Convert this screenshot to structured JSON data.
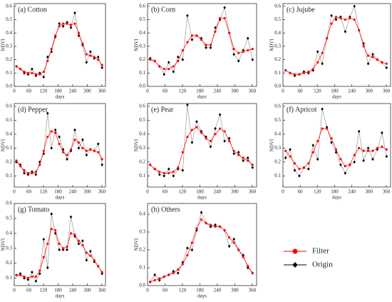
{
  "chart_data": [
    {
      "type": "line",
      "title": "(a) Cotton",
      "x_label": "days",
      "y_label": "NDVI",
      "x": [
        9,
        25,
        41,
        57,
        73,
        89,
        105,
        121,
        137,
        153,
        169,
        185,
        201,
        217,
        233,
        249,
        265,
        281,
        297,
        313,
        329,
        345,
        361
      ],
      "xlim": [
        0,
        375
      ],
      "xticks": [
        0,
        60,
        120,
        180,
        240,
        300,
        360
      ],
      "ylim": [
        0,
        0.62
      ],
      "yticks": [
        {
          "value": 0,
          "label": "0.0"
        },
        0.1,
        0.2,
        0.3,
        0.4,
        0.5,
        0.6
      ],
      "series": [
        {
          "name": "Origin",
          "color": "#000000",
          "values": [
            0.15,
            0.13,
            0.1,
            0.09,
            0.13,
            0.08,
            0.1,
            0.07,
            0.22,
            0.26,
            0.37,
            0.47,
            0.45,
            0.48,
            0.44,
            0.55,
            0.38,
            0.31,
            0.18,
            0.26,
            0.21,
            0.22,
            0.14
          ]
        },
        {
          "name": "Filter",
          "color": "#ff0000",
          "values": [
            0.15,
            0.13,
            0.11,
            0.1,
            0.1,
            0.09,
            0.09,
            0.11,
            0.19,
            0.28,
            0.38,
            0.45,
            0.47,
            0.47,
            0.46,
            0.47,
            0.4,
            0.32,
            0.24,
            0.23,
            0.22,
            0.2,
            0.16
          ]
        }
      ]
    },
    {
      "type": "line",
      "title": "(b) Corn",
      "x_label": "days",
      "y_label": "NDVI",
      "x": [
        9,
        25,
        41,
        57,
        73,
        89,
        105,
        121,
        137,
        153,
        169,
        185,
        201,
        217,
        233,
        249,
        265,
        281,
        297,
        313,
        329,
        345,
        361
      ],
      "xlim": [
        0,
        375
      ],
      "xticks": [
        0,
        60,
        120,
        180,
        240,
        300,
        360
      ],
      "ylim": [
        0,
        0.62
      ],
      "yticks": [
        {
          "value": 0,
          "label": "0.0"
        },
        0.1,
        0.2,
        0.3,
        0.4,
        0.5,
        0.6
      ],
      "series": [
        {
          "name": "Origin",
          "color": "#000000",
          "values": [
            0.21,
            0.19,
            0.15,
            0.09,
            0.18,
            0.11,
            0.22,
            0.2,
            0.53,
            0.35,
            0.38,
            0.36,
            0.29,
            0.29,
            0.44,
            0.5,
            0.59,
            0.4,
            0.24,
            0.19,
            0.27,
            0.36,
            0.2
          ]
        },
        {
          "name": "Filter",
          "color": "#ff0000",
          "values": [
            0.2,
            0.19,
            0.15,
            0.13,
            0.13,
            0.15,
            0.19,
            0.27,
            0.33,
            0.38,
            0.38,
            0.35,
            0.31,
            0.31,
            0.41,
            0.51,
            0.51,
            0.4,
            0.28,
            0.25,
            0.26,
            0.27,
            0.28
          ]
        }
      ]
    },
    {
      "type": "line",
      "title": "(c) Jujube",
      "x_label": "days",
      "y_label": "NDVI",
      "x": [
        9,
        25,
        41,
        57,
        73,
        89,
        105,
        121,
        137,
        153,
        169,
        185,
        201,
        217,
        233,
        249,
        265,
        281,
        297,
        313,
        329,
        345,
        361
      ],
      "xlim": [
        0,
        375
      ],
      "xticks": [
        0,
        60,
        120,
        180,
        240,
        300,
        360
      ],
      "ylim": [
        0,
        0.62
      ],
      "yticks": [
        {
          "value": 0,
          "label": "0.0"
        },
        0.1,
        0.2,
        0.3,
        0.4,
        0.5,
        0.6
      ],
      "series": [
        {
          "name": "Origin",
          "color": "#000000",
          "values": [
            0.12,
            0.1,
            0.08,
            0.09,
            0.11,
            0.1,
            0.12,
            0.26,
            0.17,
            0.36,
            0.53,
            0.5,
            0.52,
            0.41,
            0.52,
            0.6,
            0.42,
            0.32,
            0.17,
            0.24,
            0.2,
            0.18,
            0.14
          ]
        },
        {
          "name": "Filter",
          "color": "#ff0000",
          "values": [
            0.12,
            0.1,
            0.09,
            0.09,
            0.1,
            0.11,
            0.13,
            0.18,
            0.25,
            0.36,
            0.47,
            0.52,
            0.51,
            0.5,
            0.51,
            0.5,
            0.42,
            0.3,
            0.23,
            0.22,
            0.2,
            0.18,
            0.17
          ]
        }
      ]
    },
    {
      "type": "line",
      "title": "(d) Pepper",
      "x_label": "days",
      "y_label": "NDVI",
      "x": [
        9,
        25,
        41,
        57,
        73,
        89,
        105,
        121,
        137,
        153,
        169,
        185,
        201,
        217,
        233,
        249,
        265,
        281,
        297,
        313,
        329,
        345,
        361
      ],
      "xlim": [
        0,
        375
      ],
      "xticks": [
        0,
        60,
        120,
        180,
        240,
        300,
        360
      ],
      "ylim": [
        0.02,
        0.62
      ],
      "yticks": [
        0.1,
        0.2,
        0.3,
        0.4,
        0.5,
        0.6
      ],
      "series": [
        {
          "name": "Origin",
          "color": "#000000",
          "values": [
            0.2,
            0.18,
            0.12,
            0.11,
            0.13,
            0.11,
            0.2,
            0.26,
            0.55,
            0.3,
            0.43,
            0.38,
            0.29,
            0.22,
            0.28,
            0.43,
            0.3,
            0.36,
            0.25,
            0.29,
            0.28,
            0.33,
            0.18
          ]
        },
        {
          "name": "Filter",
          "color": "#ff0000",
          "values": [
            0.21,
            0.17,
            0.14,
            0.12,
            0.12,
            0.13,
            0.18,
            0.28,
            0.38,
            0.42,
            0.41,
            0.33,
            0.27,
            0.25,
            0.29,
            0.36,
            0.34,
            0.3,
            0.28,
            0.29,
            0.28,
            0.27,
            0.22
          ]
        }
      ]
    },
    {
      "type": "line",
      "title": "(e) Pear",
      "x_label": "days",
      "y_label": "NDVI",
      "x": [
        9,
        25,
        41,
        57,
        73,
        89,
        105,
        121,
        137,
        153,
        169,
        185,
        201,
        217,
        233,
        249,
        265,
        281,
        297,
        313,
        329,
        345,
        361
      ],
      "xlim": [
        0,
        375
      ],
      "xticks": [
        0,
        60,
        120,
        180,
        240,
        300,
        360
      ],
      "ylim": [
        0.02,
        0.62
      ],
      "yticks": [
        0.1,
        0.2,
        0.3,
        0.4,
        0.5,
        0.6
      ],
      "series": [
        {
          "name": "Origin",
          "color": "#000000",
          "values": [
            0.18,
            0.15,
            0.11,
            0.1,
            0.15,
            0.1,
            0.15,
            0.14,
            0.61,
            0.34,
            0.49,
            0.42,
            0.38,
            0.31,
            0.44,
            0.54,
            0.35,
            0.37,
            0.26,
            0.27,
            0.21,
            0.23,
            0.16
          ]
        },
        {
          "name": "Filter",
          "color": "#ff0000",
          "values": [
            0.18,
            0.15,
            0.13,
            0.12,
            0.12,
            0.13,
            0.16,
            0.27,
            0.38,
            0.43,
            0.45,
            0.41,
            0.37,
            0.35,
            0.4,
            0.44,
            0.42,
            0.35,
            0.28,
            0.25,
            0.23,
            0.21,
            0.18
          ]
        }
      ]
    },
    {
      "type": "line",
      "title": "(f) Apricot",
      "x_label": "days",
      "y_label": "NDVI",
      "x": [
        9,
        25,
        41,
        57,
        73,
        89,
        105,
        121,
        137,
        153,
        169,
        185,
        201,
        217,
        233,
        249,
        265,
        281,
        297,
        313,
        329,
        345,
        361
      ],
      "xlim": [
        0,
        375
      ],
      "xticks": [
        0,
        60,
        120,
        180,
        240,
        300,
        360
      ],
      "ylim": [
        0.02,
        0.62
      ],
      "yticks": [
        0.1,
        0.2,
        0.3,
        0.4,
        0.5,
        0.6
      ],
      "series": [
        {
          "name": "Origin",
          "color": "#000000",
          "values": [
            0.23,
            0.29,
            0.14,
            0.1,
            0.16,
            0.15,
            0.32,
            0.22,
            0.58,
            0.45,
            0.34,
            0.27,
            0.18,
            0.12,
            0.18,
            0.2,
            0.42,
            0.21,
            0.3,
            0.22,
            0.29,
            0.41,
            0.24
          ]
        },
        {
          "name": "Filter",
          "color": "#ff0000",
          "values": [
            0.28,
            0.24,
            0.19,
            0.15,
            0.16,
            0.19,
            0.27,
            0.35,
            0.44,
            0.44,
            0.37,
            0.29,
            0.22,
            0.17,
            0.18,
            0.25,
            0.3,
            0.28,
            0.28,
            0.28,
            0.3,
            0.31,
            0.29
          ]
        }
      ]
    },
    {
      "type": "line",
      "title": "(g) Tomato",
      "x_label": "days",
      "y_label": "NDVI",
      "x": [
        9,
        25,
        41,
        57,
        73,
        89,
        105,
        121,
        137,
        153,
        169,
        185,
        201,
        217,
        233,
        249,
        265,
        281,
        297,
        313,
        329,
        345,
        361
      ],
      "xlim": [
        0,
        375
      ],
      "xticks": [
        0,
        60,
        120,
        180,
        240,
        300,
        360
      ],
      "ylim": [
        0.05,
        0.6
      ],
      "yticks": [
        0.1,
        0.2,
        0.3,
        0.4,
        0.5,
        0.6
      ],
      "series": [
        {
          "name": "Origin",
          "color": "#000000",
          "values": [
            0.12,
            0.13,
            0.1,
            0.09,
            0.14,
            0.08,
            0.13,
            0.36,
            0.17,
            0.53,
            0.4,
            0.29,
            0.29,
            0.29,
            0.51,
            0.38,
            0.33,
            0.35,
            0.22,
            0.28,
            0.21,
            0.18,
            0.13
          ]
        },
        {
          "name": "Filter",
          "color": "#ff0000",
          "values": [
            0.12,
            0.12,
            0.11,
            0.1,
            0.11,
            0.11,
            0.15,
            0.24,
            0.33,
            0.43,
            0.42,
            0.33,
            0.3,
            0.31,
            0.4,
            0.39,
            0.35,
            0.32,
            0.27,
            0.25,
            0.22,
            0.18,
            0.14
          ]
        }
      ]
    },
    {
      "type": "line",
      "title": "(h) Others",
      "x_label": "days",
      "y_label": "NDVI",
      "x": [
        9,
        25,
        41,
        57,
        73,
        89,
        105,
        121,
        137,
        153,
        169,
        185,
        201,
        217,
        233,
        249,
        265,
        281,
        297,
        313,
        329,
        345,
        361
      ],
      "xlim": [
        0,
        375
      ],
      "xticks": [
        0,
        60,
        120,
        180,
        240,
        300,
        360
      ],
      "ylim": [
        0,
        0.46
      ],
      "yticks": [
        {
          "value": 0,
          "label": "0.0"
        },
        0.1,
        0.2,
        0.3,
        0.4
      ],
      "series": [
        {
          "name": "Origin",
          "color": "#000000",
          "values": [
            0.02,
            0.06,
            0.03,
            0.05,
            0.06,
            0.08,
            0.07,
            0.13,
            0.21,
            0.2,
            0.31,
            0.41,
            0.35,
            0.33,
            0.34,
            0.33,
            0.31,
            0.22,
            0.26,
            0.2,
            0.17,
            0.1,
            0.07
          ]
        },
        {
          "name": "Filter",
          "color": "#ff0000",
          "values": [
            0.02,
            0.03,
            0.04,
            0.05,
            0.06,
            0.07,
            0.09,
            0.12,
            0.17,
            0.24,
            0.32,
            0.37,
            0.35,
            0.34,
            0.33,
            0.33,
            0.31,
            0.27,
            0.24,
            0.2,
            0.16,
            0.11,
            0.07
          ]
        }
      ]
    }
  ]
}
